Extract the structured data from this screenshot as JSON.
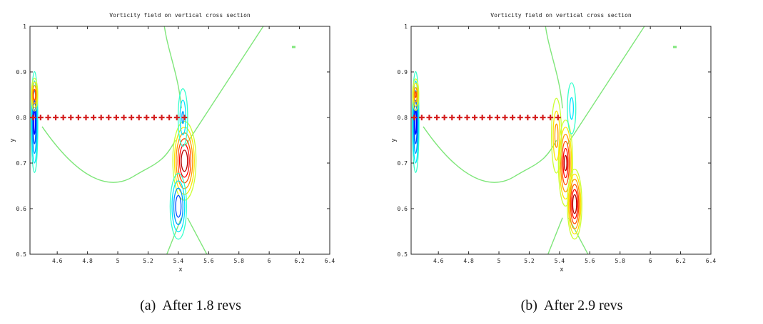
{
  "chart_data": [
    {
      "type": "contour",
      "title": "Vorticity field on vertical cross section",
      "xlabel": "x",
      "ylabel": "y",
      "xlim": [
        4.42,
        6.4
      ],
      "ylim": [
        0.5,
        1.0
      ],
      "xticks": [
        "4.6",
        "4.8",
        "5",
        "5.2",
        "5.4",
        "5.6",
        "5.8",
        "6",
        "6.2",
        "6.4"
      ],
      "yticks": [
        "0.5",
        "0.6",
        "0.7",
        "0.8",
        "0.9",
        "1"
      ],
      "caption_label": "(a)",
      "caption_text": "After 1.8 revs",
      "markers": {
        "symbol": "+",
        "color": "#d42020",
        "y": 0.8,
        "x": [
          4.44,
          4.49,
          4.54,
          4.59,
          4.64,
          4.69,
          4.74,
          4.79,
          4.84,
          4.89,
          4.94,
          4.99,
          5.04,
          5.09,
          5.14,
          5.19,
          5.24,
          5.29,
          5.34,
          5.39,
          5.44
        ]
      },
      "vortices": [
        {
          "x": 4.45,
          "y": 0.79,
          "sx": 0.012,
          "sy": 0.06,
          "amp": -0.8
        },
        {
          "x": 4.45,
          "y": 0.85,
          "sx": 0.012,
          "sy": 0.02,
          "amp": 0.7
        },
        {
          "x": 5.44,
          "y": 0.705,
          "sx": 0.04,
          "sy": 0.045,
          "amp": 1.0
        },
        {
          "x": 5.4,
          "y": 0.605,
          "sx": 0.03,
          "sy": 0.04,
          "amp": -0.7
        },
        {
          "x": 5.43,
          "y": 0.8,
          "sx": 0.02,
          "sy": 0.04,
          "amp": -0.45
        }
      ]
    },
    {
      "type": "contour",
      "title": "Vorticity field on vertical cross section",
      "xlabel": "x",
      "ylabel": "y",
      "xlim": [
        4.42,
        6.4
      ],
      "ylim": [
        0.5,
        1.0
      ],
      "xticks": [
        "4.6",
        "4.8",
        "5",
        "5.2",
        "5.4",
        "5.6",
        "5.8",
        "6",
        "6.2",
        "6.4"
      ],
      "yticks": [
        "0.5",
        "0.6",
        "0.7",
        "0.8",
        "0.9",
        "1"
      ],
      "caption_label": "(b)",
      "caption_text": "After 2.9 revs",
      "markers": {
        "symbol": "+",
        "color": "#d42020",
        "y": 0.8,
        "x": [
          4.44,
          4.49,
          4.54,
          4.59,
          4.64,
          4.69,
          4.74,
          4.79,
          4.84,
          4.89,
          4.94,
          4.99,
          5.04,
          5.09,
          5.14,
          5.19,
          5.24,
          5.29,
          5.34,
          5.39
        ]
      },
      "vortices": [
        {
          "x": 4.45,
          "y": 0.79,
          "sx": 0.012,
          "sy": 0.06,
          "amp": -0.8
        },
        {
          "x": 4.45,
          "y": 0.85,
          "sx": 0.012,
          "sy": 0.02,
          "amp": 0.6
        },
        {
          "x": 5.44,
          "y": 0.7,
          "sx": 0.025,
          "sy": 0.05,
          "amp": 0.9
        },
        {
          "x": 5.5,
          "y": 0.61,
          "sx": 0.025,
          "sy": 0.04,
          "amp": 1.0
        },
        {
          "x": 5.38,
          "y": 0.76,
          "sx": 0.02,
          "sy": 0.05,
          "amp": 0.5
        },
        {
          "x": 5.48,
          "y": 0.82,
          "sx": 0.02,
          "sy": 0.04,
          "amp": -0.35
        }
      ]
    }
  ]
}
